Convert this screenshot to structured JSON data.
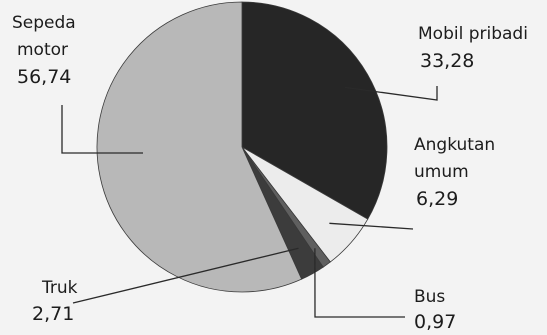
{
  "chart_data": {
    "type": "pie",
    "title": "",
    "slices": [
      {
        "label_lines": [
          "Mobil pribadi"
        ],
        "value_text": "33,28",
        "value": 33.28,
        "color": "#262626"
      },
      {
        "label_lines": [
          "Angkutan",
          "umum"
        ],
        "value_text": "6,29",
        "value": 6.29,
        "color": "#ececec"
      },
      {
        "label_lines": [
          "Bus"
        ],
        "value_text": "0,97",
        "value": 0.97,
        "color": "#5f5f5f"
      },
      {
        "label_lines": [
          "Truk"
        ],
        "value_text": "2,71",
        "value": 2.71,
        "color": "#3c3c3c"
      },
      {
        "label_lines": [
          "Sepeda",
          "motor"
        ],
        "value_text": "56,74",
        "value": 56.74,
        "color": "#b8b8b8"
      }
    ],
    "start": "top, clockwise",
    "legend": "none"
  }
}
